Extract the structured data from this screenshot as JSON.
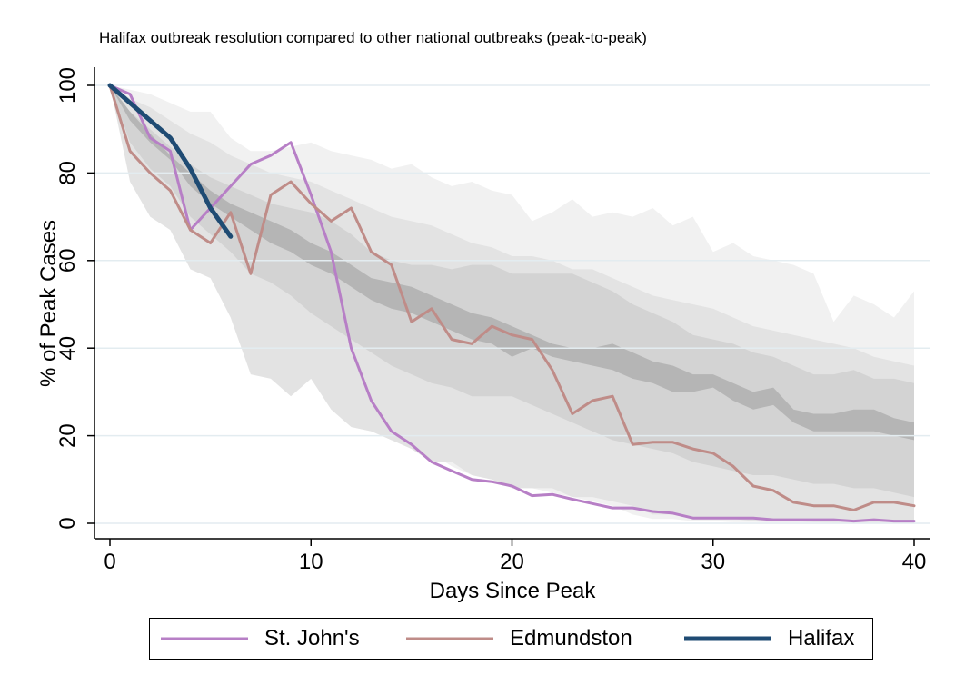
{
  "chart_data": {
    "type": "line",
    "title": "Halifax outbreak resolution compared to other national outbreaks (peak-to-peak)",
    "xlabel": "Days Since Peak",
    "ylabel": "% of Peak Cases",
    "xlim": [
      0,
      40
    ],
    "ylim": [
      0,
      100
    ],
    "xticks": [
      "0",
      "10",
      "20",
      "30",
      "40"
    ],
    "yticks": [
      "0",
      "20",
      "40",
      "60",
      "80",
      "100"
    ],
    "grid": "horizontal",
    "legend_position": "bottom",
    "series": [
      {
        "name": "St. John's",
        "color": "#b77fc6",
        "x": [
          0,
          1,
          2,
          3,
          4,
          5,
          6,
          7,
          8,
          9,
          10,
          11,
          12,
          13,
          14,
          15,
          16,
          17,
          18,
          19,
          20,
          21,
          22,
          23,
          24,
          25,
          26,
          27,
          28,
          29,
          30,
          31,
          32,
          33,
          34,
          35,
          36,
          37,
          38,
          39,
          40
        ],
        "values": [
          100,
          98,
          88,
          85,
          67,
          72,
          77,
          82,
          84,
          87,
          75,
          62,
          40,
          28,
          21,
          18,
          14,
          12,
          10,
          9.5,
          8.5,
          6.3,
          6.6,
          5.5,
          4.5,
          3.5,
          3.5,
          2.7,
          2.3,
          1.2,
          1.2,
          1.2,
          1.2,
          0.8,
          0.8,
          0.8,
          0.8,
          0.5,
          0.8,
          0.5,
          0.5
        ]
      },
      {
        "name": "Edmundston",
        "color": "#bf8c88",
        "x": [
          0,
          1,
          2,
          3,
          4,
          5,
          6,
          7,
          8,
          9,
          10,
          11,
          12,
          13,
          14,
          15,
          16,
          17,
          18,
          19,
          20,
          21,
          22,
          23,
          24,
          25,
          26,
          27,
          28,
          29,
          30,
          31,
          32,
          33,
          34,
          35,
          36,
          37,
          38,
          39,
          40
        ],
        "values": [
          100,
          85,
          80,
          76,
          67,
          64,
          71,
          57,
          75,
          78,
          73,
          69,
          72,
          62,
          59,
          46,
          49,
          42,
          41,
          45,
          43,
          42,
          35,
          25,
          28,
          29,
          18,
          18.5,
          18.5,
          17,
          16,
          13,
          8.5,
          7.5,
          4.8,
          4,
          4,
          3,
          4.8,
          4.8,
          4
        ]
      },
      {
        "name": "Halifax",
        "color": "#1f4b73",
        "x": [
          0,
          1,
          2,
          3,
          4,
          5,
          6
        ],
        "values": [
          100,
          96,
          92,
          88,
          81,
          72,
          65.5
        ]
      }
    ],
    "bands": [
      {
        "color": "#f1f1f1",
        "x": [
          0,
          1,
          2,
          3,
          4,
          5,
          6,
          7,
          8,
          9,
          10,
          11,
          12,
          13,
          14,
          15,
          16,
          17,
          18,
          19,
          20,
          21,
          22,
          23,
          24,
          25,
          26,
          27,
          28,
          29,
          30,
          31,
          32,
          33,
          34,
          35,
          36,
          37,
          38,
          39,
          40
        ],
        "upper": [
          100,
          99,
          98,
          96,
          94,
          94,
          88,
          85,
          85,
          86,
          87,
          85,
          84,
          83,
          81,
          82,
          79,
          77,
          78,
          76,
          75,
          69,
          71,
          74,
          70,
          71,
          70,
          72,
          68,
          70,
          62,
          64,
          61,
          60,
          59,
          57,
          46,
          52,
          50,
          47,
          53
        ],
        "lower": [
          100,
          93,
          87,
          82,
          72,
          66,
          61,
          49,
          45,
          41,
          42,
          30,
          22,
          21,
          19,
          18,
          16,
          13,
          11,
          10,
          8,
          8,
          7,
          6,
          5,
          4,
          2,
          1,
          1,
          0.5,
          0.5,
          0.3,
          0.3,
          0.2,
          0.2,
          0.2,
          0.1,
          0.1,
          0.1,
          0.1,
          0.1
        ]
      },
      {
        "color": "#e3e3e3",
        "x": [
          0,
          1,
          2,
          3,
          4,
          5,
          6,
          7,
          8,
          9,
          10,
          11,
          12,
          13,
          14,
          15,
          16,
          17,
          18,
          19,
          20,
          21,
          22,
          23,
          24,
          25,
          26,
          27,
          28,
          29,
          30,
          31,
          32,
          33,
          34,
          35,
          36,
          37,
          38,
          39,
          40
        ],
        "upper": [
          100,
          97,
          95,
          92,
          89,
          87,
          84,
          82,
          80,
          79,
          78,
          76,
          74,
          72,
          70,
          69,
          68,
          66,
          64,
          63,
          61,
          61,
          60,
          58,
          58,
          56,
          54,
          52,
          51,
          50,
          49,
          47,
          45,
          44,
          43,
          42,
          41,
          40,
          38,
          37,
          36
        ],
        "lower": [
          100,
          78,
          70,
          67,
          58,
          56,
          47,
          34,
          33,
          29,
          33,
          26,
          22,
          21,
          19,
          17,
          14,
          14,
          11,
          10,
          8,
          8,
          8,
          6,
          6,
          5,
          4,
          2,
          2,
          1,
          1,
          1,
          0.5,
          0.5,
          0.5,
          0.3,
          0.3,
          0.3,
          0.3,
          0.3,
          0.3
        ]
      },
      {
        "color": "#d3d3d3",
        "x": [
          0,
          1,
          2,
          3,
          4,
          5,
          6,
          7,
          8,
          9,
          10,
          11,
          12,
          13,
          14,
          15,
          16,
          17,
          18,
          19,
          20,
          21,
          22,
          23,
          24,
          25,
          26,
          27,
          28,
          29,
          30,
          31,
          32,
          33,
          34,
          35,
          36,
          37,
          38,
          39,
          40
        ],
        "upper": [
          100,
          94,
          90,
          86,
          82,
          79,
          77,
          75,
          73,
          72,
          71,
          69,
          66,
          62,
          60,
          59,
          59,
          58,
          59,
          59,
          57,
          57,
          57,
          57,
          55,
          53,
          50,
          48,
          46,
          43,
          42,
          41,
          39,
          38,
          36,
          34,
          34,
          35,
          33,
          33,
          32
        ],
        "lower": [
          100,
          87,
          81,
          77,
          70,
          66,
          62,
          57,
          55,
          52,
          48,
          45,
          42,
          39,
          36,
          34,
          32,
          31,
          29,
          29,
          29,
          27,
          25,
          23,
          21,
          19,
          18,
          17,
          16,
          14,
          13,
          12,
          11,
          11,
          10,
          9,
          9,
          8,
          8,
          7,
          6
        ]
      },
      {
        "color": "#b5b5b5",
        "x": [
          0,
          1,
          2,
          3,
          4,
          5,
          6,
          7,
          8,
          9,
          10,
          11,
          12,
          13,
          14,
          15,
          16,
          17,
          18,
          19,
          20,
          21,
          22,
          23,
          24,
          25,
          26,
          27,
          28,
          29,
          30,
          31,
          32,
          33,
          34,
          35,
          36,
          37,
          38,
          39,
          40
        ],
        "upper": [
          100,
          94,
          89,
          84,
          80,
          76,
          73,
          71,
          69,
          67,
          64,
          62,
          59,
          56,
          55,
          54,
          52,
          50,
          48,
          47,
          45,
          43,
          41,
          40,
          40,
          41,
          39,
          37,
          36,
          34,
          34,
          32,
          30,
          31,
          26,
          25,
          25,
          26,
          26,
          24,
          23
        ],
        "lower": [
          100,
          92,
          87,
          83,
          77,
          73,
          70,
          67,
          64,
          62,
          59,
          57,
          54,
          51,
          49,
          48,
          46,
          44,
          42,
          41,
          38,
          40,
          38,
          37,
          36,
          35,
          33,
          32,
          30,
          30,
          31,
          28,
          26,
          27,
          23,
          21,
          21,
          21,
          21,
          20,
          19
        ]
      }
    ]
  }
}
